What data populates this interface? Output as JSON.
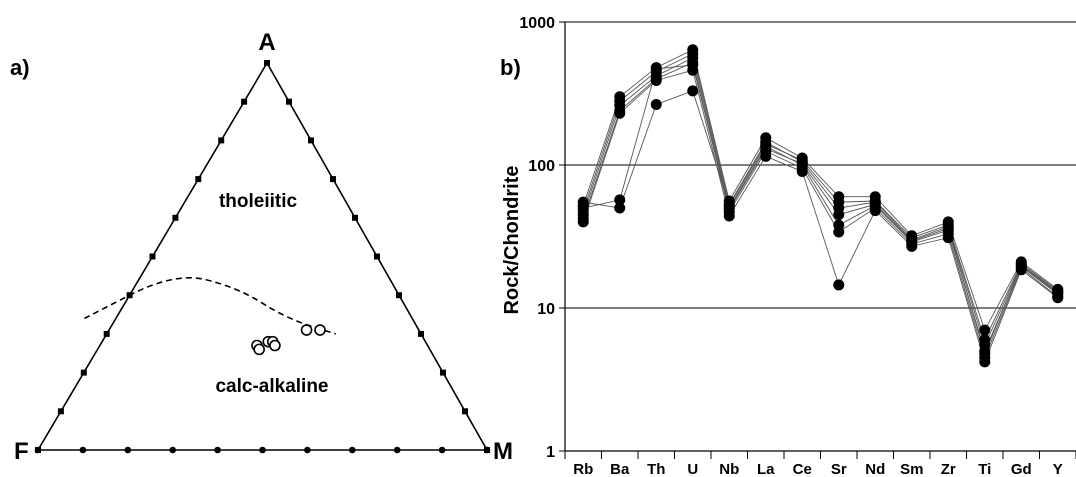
{
  "chart_data": [
    {
      "type": "scatter",
      "panel_label": "a)",
      "vertex_labels": {
        "top": "A",
        "left": "F",
        "right": "M"
      },
      "field_labels": {
        "upper": "tholeiitic",
        "lower": "calc-alkaline"
      },
      "ticks_per_edge": 9,
      "boundary_curve": [
        [
          0.1,
          0.34
        ],
        [
          0.3,
          0.46
        ],
        [
          0.44,
          0.42
        ],
        [
          0.55,
          0.34
        ],
        [
          0.66,
          0.3
        ]
      ],
      "points": [
        {
          "M": 0.35,
          "A": 0.27
        },
        {
          "M": 0.36,
          "A": 0.26
        },
        {
          "M": 0.37,
          "A": 0.28
        },
        {
          "M": 0.38,
          "A": 0.28
        },
        {
          "M": 0.39,
          "A": 0.27
        },
        {
          "M": 0.44,
          "A": 0.31
        },
        {
          "M": 0.47,
          "A": 0.31
        }
      ]
    },
    {
      "type": "line",
      "panel_label": "b)",
      "ylabel": "Rock/Chondrite",
      "yscale": "log",
      "ylim": [
        1,
        1000
      ],
      "yticks": [
        "1",
        "10",
        "100",
        "1000"
      ],
      "categories": [
        "Rb",
        "Ba",
        "Th",
        "U",
        "Nb",
        "La",
        "Ce",
        "Sr",
        "Nd",
        "Sm",
        "Zr",
        "Ti",
        "Gd",
        "Y"
      ],
      "series": [
        {
          "values": [
            52,
            300,
            480,
            640,
            56,
            155,
            112,
            60,
            60,
            32,
            40,
            7.0,
            21,
            13.5
          ]
        },
        {
          "values": [
            48,
            280,
            450,
            600,
            53,
            145,
            105,
            50,
            55,
            30,
            37,
            5.5,
            20,
            13
          ]
        },
        {
          "values": [
            45,
            260,
            420,
            560,
            50,
            135,
            100,
            38,
            52,
            29,
            35,
            5.0,
            19.5,
            12.5
          ]
        },
        {
          "values": [
            42,
            240,
            400,
            520,
            47,
            125,
            95,
            34,
            50,
            28,
            33,
            4.5,
            19,
            12
          ]
        },
        {
          "values": [
            40,
            230,
            390,
            460,
            44,
            115,
            90,
            14.5,
            48,
            27,
            31,
            4.2,
            18.5,
            11.8
          ]
        },
        {
          "values": [
            55,
            50,
            265,
            330,
            52,
            140,
            108,
            55,
            56,
            31,
            38,
            6.0,
            20.5,
            13.2
          ]
        },
        {
          "values": [
            50,
            57,
            470,
            500,
            49,
            130,
            102,
            45,
            53,
            29.5,
            36,
            4.8,
            19.8,
            12.7
          ]
        }
      ]
    }
  ]
}
